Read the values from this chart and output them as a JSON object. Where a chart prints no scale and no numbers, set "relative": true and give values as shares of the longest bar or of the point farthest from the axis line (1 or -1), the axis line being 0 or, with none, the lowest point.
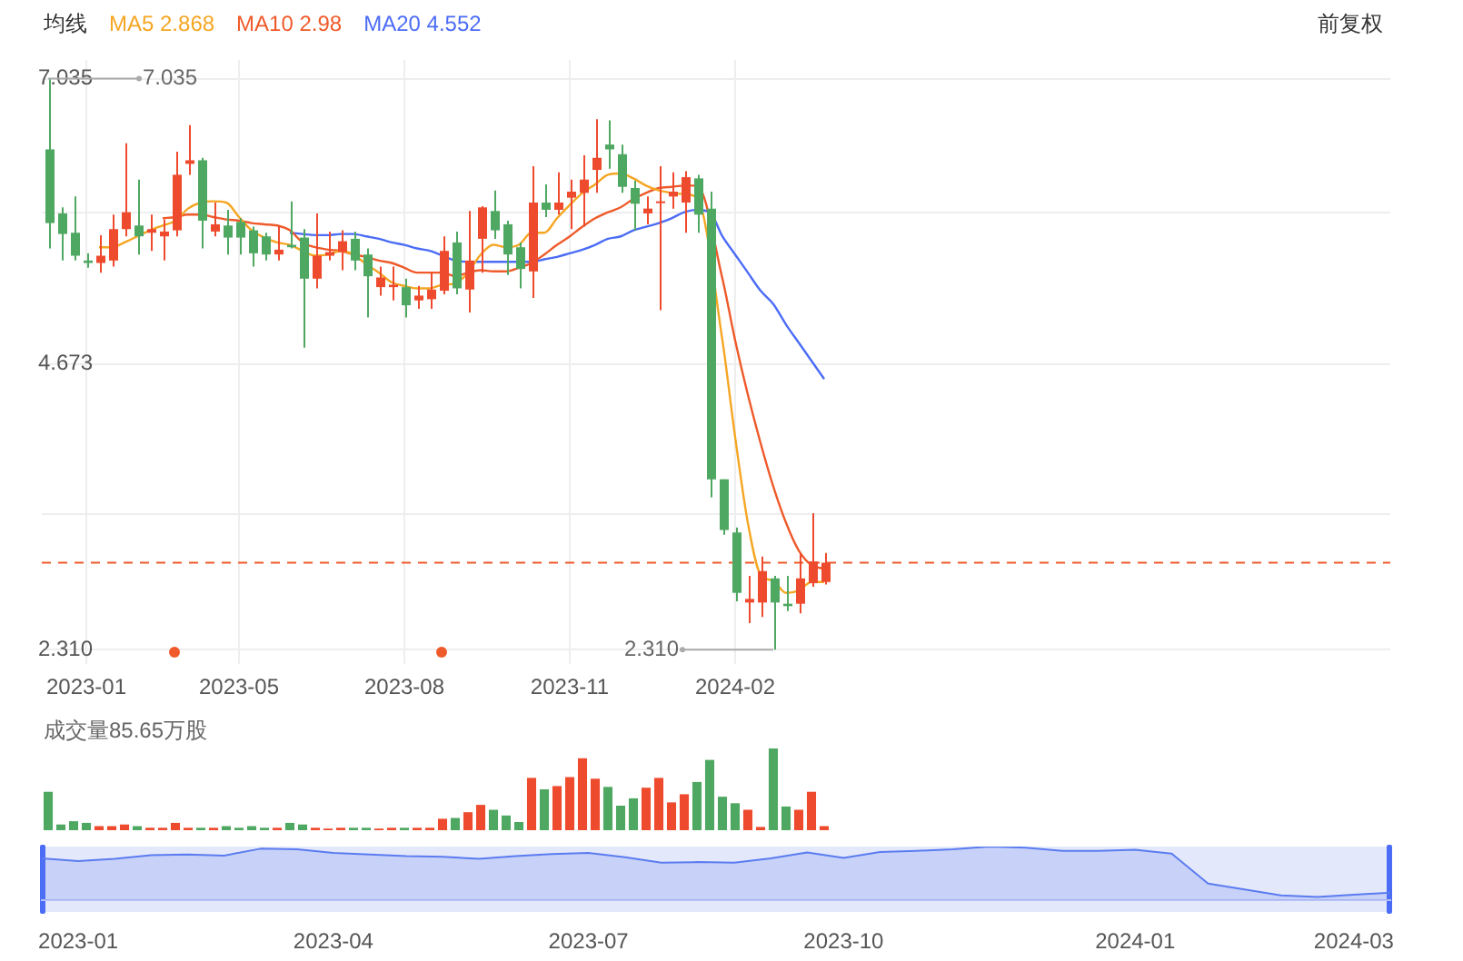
{
  "chart_data": [
    {
      "type": "candlestick",
      "legend_title": "均线",
      "legend": "top left",
      "marker": "none",
      "grid": true,
      "categories": [
        null,
        null,
        null,
        "2023-01",
        null,
        null,
        null,
        null,
        null,
        null,
        null,
        null,
        null,
        null,
        null,
        "2023-05",
        null,
        null,
        null,
        null,
        null,
        null,
        null,
        null,
        null,
        null,
        null,
        null,
        "2023-08",
        null,
        null,
        null,
        null,
        null,
        null,
        null,
        null,
        null,
        null,
        null,
        null,
        "2023-11",
        null,
        null,
        null,
        null,
        null,
        null,
        null,
        null,
        null,
        null,
        null,
        null,
        "2024-02",
        null,
        null,
        null,
        null,
        null,
        null,
        null,
        null,
        null,
        null,
        null,
        null,
        null,
        null,
        null,
        null,
        null,
        null,
        null,
        null,
        null,
        null,
        null,
        null,
        null,
        null,
        null,
        null,
        null,
        null,
        null,
        null,
        null,
        null,
        null,
        null,
        null,
        null,
        null,
        null,
        null,
        null,
        null,
        null,
        null,
        null,
        null,
        null,
        null,
        null,
        null
      ],
      "ohlc": [
        [
          6.45,
          7.035,
          5.63,
          5.84
        ],
        [
          5.92,
          5.97,
          5.53,
          5.75
        ],
        [
          5.76,
          6.06,
          5.53,
          5.57
        ],
        [
          5.53,
          5.59,
          5.47,
          5.51
        ],
        [
          5.51,
          5.74,
          5.43,
          5.57
        ],
        [
          5.53,
          5.91,
          5.48,
          5.79
        ],
        [
          5.79,
          6.5,
          5.73,
          5.93
        ],
        [
          5.82,
          6.2,
          5.58,
          5.73
        ],
        [
          5.76,
          5.91,
          5.61,
          5.79
        ],
        [
          5.73,
          5.87,
          5.53,
          5.77
        ],
        [
          5.78,
          6.43,
          5.73,
          6.24
        ],
        [
          6.33,
          6.65,
          6.24,
          6.36
        ],
        [
          6.36,
          6.38,
          5.63,
          5.86
        ],
        [
          5.77,
          6.01,
          5.73,
          5.83
        ],
        [
          5.82,
          5.95,
          5.58,
          5.72
        ],
        [
          5.85,
          5.88,
          5.58,
          5.72
        ],
        [
          5.78,
          5.81,
          5.48,
          5.59
        ],
        [
          5.73,
          5.76,
          5.53,
          5.58
        ],
        [
          5.58,
          5.82,
          5.53,
          5.62
        ],
        [
          5.66,
          6.02,
          5.63,
          5.64
        ],
        [
          5.72,
          5.79,
          4.81,
          5.38
        ],
        [
          5.38,
          5.92,
          5.3,
          5.57
        ],
        [
          5.57,
          5.77,
          5.53,
          5.6
        ],
        [
          5.6,
          5.78,
          5.45,
          5.69
        ],
        [
          5.71,
          5.77,
          5.45,
          5.53
        ],
        [
          5.58,
          5.63,
          5.06,
          5.4
        ],
        [
          5.31,
          5.48,
          5.24,
          5.39
        ],
        [
          5.31,
          5.48,
          5.2,
          5.33
        ],
        [
          5.31,
          5.38,
          5.06,
          5.16
        ],
        [
          5.2,
          5.32,
          5.13,
          5.24
        ],
        [
          5.21,
          5.43,
          5.13,
          5.29
        ],
        [
          5.28,
          5.73,
          5.25,
          5.61
        ],
        [
          5.68,
          5.77,
          5.25,
          5.3
        ],
        [
          5.29,
          5.94,
          5.1,
          5.53
        ],
        [
          5.71,
          5.98,
          5.43,
          5.97
        ],
        [
          5.94,
          6.11,
          5.71,
          5.78
        ],
        [
          5.83,
          5.86,
          5.41,
          5.58
        ],
        [
          5.64,
          5.68,
          5.3,
          5.46
        ],
        [
          5.44,
          6.31,
          5.22,
          6.01
        ],
        [
          6.01,
          6.16,
          5.89,
          5.95
        ],
        [
          5.95,
          6.26,
          5.91,
          6.01
        ],
        [
          6.05,
          6.2,
          5.79,
          6.1
        ],
        [
          6.09,
          6.4,
          5.81,
          6.2
        ],
        [
          6.28,
          6.7,
          6.09,
          6.38
        ],
        [
          6.49,
          6.69,
          6.29,
          6.45
        ],
        [
          6.41,
          6.49,
          6.09,
          6.14
        ],
        [
          6.13,
          6.19,
          5.78,
          6.0
        ],
        [
          5.92,
          6.06,
          5.83,
          5.96
        ],
        [
          6.01,
          6.31,
          5.12,
          6.02
        ],
        [
          6.06,
          6.26,
          5.96,
          6.1
        ],
        [
          6.01,
          6.27,
          5.76,
          6.22
        ],
        [
          6.21,
          6.24,
          5.76,
          5.91
        ],
        [
          5.96,
          6.1,
          3.57,
          3.72
        ],
        [
          3.72,
          3.72,
          3.26,
          3.3
        ],
        [
          3.28,
          3.32,
          2.71,
          2.78
        ],
        [
          2.7,
          2.92,
          2.53,
          2.73
        ],
        [
          2.7,
          3.08,
          2.58,
          2.96
        ],
        [
          2.9,
          2.92,
          2.31,
          2.7
        ],
        [
          2.69,
          2.92,
          2.63,
          2.67
        ],
        [
          2.69,
          3.11,
          2.61,
          2.9
        ],
        [
          2.86,
          3.44,
          2.83,
          3.04
        ],
        [
          2.87,
          3.11,
          2.85,
          3.03
        ],
        null,
        null,
        null,
        null,
        null,
        null,
        null,
        null,
        null,
        null,
        null,
        null,
        null,
        null,
        null,
        null,
        null,
        null,
        null,
        null,
        null,
        null,
        null,
        null,
        null,
        null,
        null,
        null,
        null,
        null,
        null,
        null,
        null,
        null,
        null,
        null,
        null,
        null,
        null,
        null,
        null,
        null,
        null,
        null
      ],
      "colors": [
        "#4fa862",
        "#4fa862",
        "#4fa862",
        "#4fa862",
        "#ee4b2e",
        "#ee4b2e",
        "#ee4b2e",
        "#4fa862",
        "#ee4b2e",
        "#ee4b2e",
        "#ee4b2e",
        "#ee4b2e",
        "#4fa862",
        "#ee4b2e",
        "#4fa862",
        "#4fa862",
        "#4fa862",
        "#4fa862",
        "#ee4b2e",
        "#4fa862",
        "#4fa862",
        "#ee4b2e",
        "#ee4b2e",
        "#ee4b2e",
        "#4fa862",
        "#4fa862",
        "#ee4b2e",
        "#ee4b2e",
        "#4fa862",
        "#ee4b2e",
        "#ee4b2e",
        "#ee4b2e",
        "#4fa862",
        "#ee4b2e",
        "#ee4b2e",
        "#4fa862",
        "#4fa862",
        "#4fa862",
        "#ee4b2e",
        "#4fa862",
        "#ee4b2e",
        "#ee4b2e",
        "#ee4b2e",
        "#ee4b2e",
        "#4fa862",
        "#4fa862",
        "#4fa862",
        "#ee4b2e",
        "#ee4b2e",
        "#ee4b2e",
        "#ee4b2e",
        "#4fa862",
        "#4fa862",
        "#4fa862",
        "#4fa862",
        "#ee4b2e",
        "#ee4b2e",
        "#4fa862",
        "#4fa862",
        "#ee4b2e",
        "#ee4b2e",
        "#ee4b2e",
        null,
        null,
        null,
        null,
        null,
        null,
        null,
        null,
        null,
        null,
        null,
        null,
        null,
        null,
        null,
        null,
        null,
        null,
        null,
        null,
        null,
        null,
        null,
        null,
        null,
        null,
        null,
        null,
        null,
        null,
        null,
        null,
        null,
        null,
        null,
        null,
        null,
        null,
        null,
        null,
        null,
        null,
        null,
        null
      ],
      "series": [
        {
          "name": "MA5 2.868",
          "type": "line",
          "color": "#f5a623",
          "values": [
            null,
            null,
            null,
            null,
            5.64,
            5.64,
            5.68,
            5.73,
            5.78,
            5.82,
            5.86,
            5.96,
            6.01,
            6.02,
            6.01,
            5.89,
            5.78,
            5.72,
            5.68,
            5.66,
            5.61,
            5.57,
            5.58,
            5.61,
            5.58,
            5.5,
            5.43,
            5.35,
            5.32,
            5.3,
            5.3,
            5.33,
            5.34,
            5.43,
            5.58,
            5.66,
            5.64,
            5.66,
            5.76,
            5.76,
            5.88,
            5.99,
            6.09,
            6.16,
            6.24,
            6.25,
            6.21,
            6.15,
            6.11,
            6.09,
            6.08,
            6.05,
            null,
            4.87,
            4.07,
            3.36,
            2.93,
            2.88,
            2.78,
            2.8,
            2.87,
            2.87,
            null,
            null,
            null,
            null,
            null,
            null,
            null,
            null,
            null,
            null,
            null,
            null,
            null,
            null,
            null,
            null,
            null,
            null,
            null,
            null,
            null,
            null,
            null,
            null,
            null,
            null,
            null,
            null,
            null,
            null,
            null,
            null,
            null,
            null,
            null,
            null,
            null,
            null,
            null,
            null,
            null,
            null,
            null,
            null
          ]
        },
        {
          "name": "MA10 2.98",
          "type": "line",
          "color": "#ef5a2a",
          "values": [
            null,
            null,
            null,
            null,
            null,
            null,
            null,
            null,
            null,
            5.88,
            5.89,
            5.91,
            5.91,
            5.89,
            5.87,
            5.86,
            5.84,
            5.83,
            5.82,
            5.78,
            5.68,
            5.64,
            5.62,
            5.61,
            5.58,
            5.56,
            5.53,
            5.51,
            5.47,
            5.43,
            5.43,
            5.43,
            5.4,
            5.43,
            5.45,
            5.44,
            5.44,
            5.47,
            5.51,
            5.58,
            5.66,
            5.73,
            5.81,
            5.88,
            5.93,
            5.97,
            6.04,
            6.09,
            6.13,
            6.14,
            6.15,
            6.15,
            null,
            5.38,
            4.87,
            4.42,
            4.02,
            3.66,
            3.36,
            3.13,
            3.01,
            2.98,
            null,
            null,
            null,
            null,
            null,
            null,
            null,
            null,
            null,
            null,
            null,
            null,
            null,
            null,
            null,
            null,
            null,
            null,
            null,
            null,
            null,
            null,
            null,
            null,
            null,
            null,
            null,
            null,
            null,
            null,
            null,
            null,
            null,
            null,
            null,
            null,
            null,
            null,
            null,
            null,
            null,
            null,
            null,
            null
          ]
        },
        {
          "name": "MA20 4.552",
          "type": "line",
          "color": "#4b6cf5",
          "values": [
            null,
            null,
            null,
            null,
            null,
            null,
            null,
            null,
            null,
            null,
            null,
            null,
            null,
            null,
            null,
            null,
            null,
            null,
            null,
            5.76,
            5.75,
            5.74,
            5.74,
            5.75,
            5.75,
            5.73,
            5.71,
            5.68,
            5.66,
            5.63,
            5.61,
            5.57,
            5.53,
            5.52,
            5.52,
            5.52,
            5.52,
            5.52,
            5.52,
            5.54,
            5.56,
            5.59,
            5.62,
            5.66,
            5.71,
            5.73,
            5.78,
            5.81,
            5.84,
            5.88,
            5.93,
            5.95,
            5.93,
            5.73,
            5.58,
            5.43,
            5.28,
            5.17,
            5.0,
            4.85,
            4.7,
            4.55,
            null,
            null,
            null,
            null,
            null,
            null,
            null,
            null,
            null,
            null,
            null,
            null,
            null,
            null,
            null,
            null,
            null,
            null,
            null,
            null,
            null,
            null,
            null,
            null,
            null,
            null,
            null,
            null,
            null,
            null,
            null,
            null,
            null,
            null,
            null,
            null,
            null,
            null,
            null,
            null,
            null,
            null,
            null,
            null
          ]
        }
      ],
      "ylim": [
        2.19,
        7.19
      ],
      "yticks": [
        7.035,
        {
          "value": 5.93,
          "label": null
        },
        4.673,
        {
          "value": 3.43,
          "label": null
        },
        {
          "value": 2.31,
          "label": "2.310"
        }
      ],
      "ref_lines": [
        {
          "axis": "y",
          "value": 3.03,
          "color": "#ef5a2a",
          "line_style": "dashed"
        }
      ],
      "annotations": [
        "7.035",
        "2.310",
        "前复权"
      ]
    },
    {
      "type": "bar",
      "title": "成交量85.65万股",
      "relative": true,
      "categories": [
        null,
        null,
        null,
        null,
        null,
        null,
        null,
        null,
        null,
        null,
        null,
        null,
        null,
        null,
        null,
        null,
        null,
        null,
        null,
        null,
        null,
        null,
        null,
        null,
        null,
        null,
        null,
        null,
        null,
        null,
        null,
        null,
        null,
        null,
        null,
        null,
        null,
        null,
        null,
        null,
        null,
        null,
        null,
        null,
        null,
        null,
        null,
        null,
        null,
        null,
        null,
        null,
        null,
        null,
        null,
        null,
        null,
        null,
        null,
        null,
        null,
        null,
        null,
        null,
        null,
        null,
        null,
        null,
        null,
        null,
        null,
        null,
        null,
        null,
        null,
        null,
        null,
        null,
        null,
        null,
        null,
        null,
        null,
        null,
        null,
        null,
        null,
        null,
        null,
        null,
        null,
        null,
        null,
        null,
        null,
        null,
        null,
        null,
        null,
        null,
        null,
        null,
        null,
        null,
        null,
        null
      ],
      "values": [
        0.47,
        0.07,
        0.11,
        0.09,
        0.05,
        0.05,
        0.07,
        0.05,
        0.03,
        0.03,
        0.09,
        0.03,
        0.03,
        0.03,
        0.05,
        0.03,
        0.05,
        0.03,
        0.03,
        0.09,
        0.07,
        0.03,
        0.02,
        0.03,
        0.03,
        0.03,
        0.02,
        0.03,
        0.03,
        0.03,
        0.03,
        0.14,
        0.15,
        0.22,
        0.31,
        0.25,
        0.18,
        0.1,
        0.64,
        0.5,
        0.54,
        0.65,
        0.88,
        0.63,
        0.53,
        0.3,
        0.39,
        0.52,
        0.64,
        0.34,
        0.44,
        0.59,
        0.86,
        0.41,
        0.33,
        0.25,
        0.04,
        1,
        0.29,
        0.25,
        0.47,
        0.05,
        null,
        null,
        null,
        null,
        null,
        null,
        null,
        null,
        null,
        null,
        null,
        null,
        null,
        null,
        null,
        null,
        null,
        null,
        null,
        null,
        null,
        null,
        null,
        null,
        null,
        null,
        null,
        null,
        null,
        null,
        null,
        null,
        null,
        null,
        null,
        null,
        null,
        null,
        null,
        null,
        null,
        null,
        null,
        null
      ],
      "colors": [
        "#4fa862",
        "#4fa862",
        "#4fa862",
        "#4fa862",
        "#ee4b2e",
        "#ee4b2e",
        "#ee4b2e",
        "#4fa862",
        "#ee4b2e",
        "#ee4b2e",
        "#ee4b2e",
        "#ee4b2e",
        "#4fa862",
        "#ee4b2e",
        "#4fa862",
        "#4fa862",
        "#4fa862",
        "#4fa862",
        "#ee4b2e",
        "#4fa862",
        "#4fa862",
        "#ee4b2e",
        "#ee4b2e",
        "#ee4b2e",
        "#4fa862",
        "#4fa862",
        "#ee4b2e",
        "#ee4b2e",
        "#4fa862",
        "#ee4b2e",
        "#ee4b2e",
        "#ee4b2e",
        "#4fa862",
        "#ee4b2e",
        "#ee4b2e",
        "#4fa862",
        "#4fa862",
        "#4fa862",
        "#ee4b2e",
        "#4fa862",
        "#ee4b2e",
        "#ee4b2e",
        "#ee4b2e",
        "#ee4b2e",
        "#4fa862",
        "#4fa862",
        "#4fa862",
        "#ee4b2e",
        "#ee4b2e",
        "#ee4b2e",
        "#ee4b2e",
        "#4fa862",
        "#4fa862",
        "#4fa862",
        "#4fa862",
        "#ee4b2e",
        "#ee4b2e",
        "#4fa862",
        "#4fa862",
        "#ee4b2e",
        "#ee4b2e",
        "#ee4b2e",
        null,
        null,
        null,
        null,
        null,
        null,
        null,
        null,
        null,
        null,
        null,
        null,
        null,
        null,
        null,
        null,
        null,
        null,
        null,
        null,
        null,
        null,
        null,
        null,
        null,
        null,
        null,
        null,
        null,
        null,
        null,
        null,
        null,
        null,
        null,
        null,
        null,
        null,
        null,
        null,
        null,
        null,
        null,
        null
      ]
    },
    {
      "type": "area",
      "relative": true,
      "color": "#5b7cf0",
      "categories": [
        null,
        "2023-01",
        null,
        null,
        null,
        null,
        null,
        null,
        "2023-04",
        null,
        null,
        null,
        null,
        null,
        null,
        "2023-07",
        null,
        null,
        null,
        null,
        null,
        null,
        "2023-10",
        null,
        null,
        null,
        null,
        null,
        null,
        null,
        "2024-01",
        null,
        null,
        null,
        null,
        null,
        "2024-03",
        null
      ],
      "values": [
        0.78,
        0.73,
        0.77,
        0.84,
        0.85,
        0.83,
        0.96,
        0.95,
        0.88,
        0.85,
        0.82,
        0.81,
        0.77,
        0.82,
        0.86,
        0.88,
        0.8,
        0.7,
        0.71,
        0.7,
        0.78,
        0.89,
        0.79,
        0.9,
        0.92,
        0.95,
        1,
        0.98,
        0.92,
        0.92,
        0.94,
        0.87,
        0.31,
        0.2,
        0.09,
        0.06,
        0.1,
        0.14
      ]
    }
  ]
}
